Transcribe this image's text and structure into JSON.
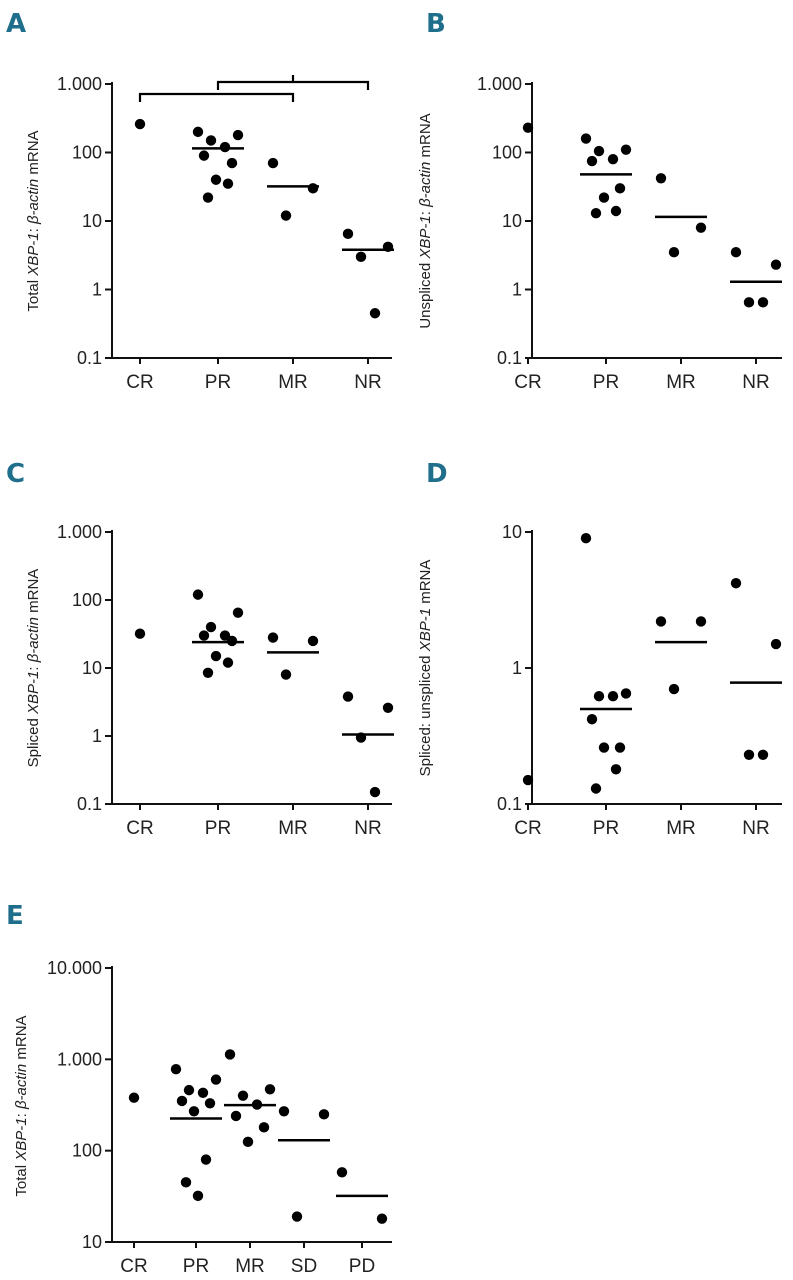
{
  "chart_data": [
    {
      "panel": "A",
      "type": "scatter",
      "yscale": "log",
      "ylim": [
        0.1,
        1000
      ],
      "yticks": [
        0.1,
        1,
        10,
        100,
        1000
      ],
      "ytick_labels": [
        "0.1",
        "1",
        "10",
        "100",
        "1.000"
      ],
      "ylabel": {
        "pre": "Total ",
        "it1": "XBP-1",
        "mid": ": ",
        "it2": "β-actin",
        "post": " mRNA"
      },
      "categories": [
        "CR",
        "PR",
        "MR",
        "NR"
      ],
      "points": [
        [
          260
        ],
        [
          200,
          180,
          150,
          120,
          90,
          70,
          40,
          35,
          22
        ],
        [
          70,
          30,
          12
        ],
        [
          6.5,
          4.2,
          3.0,
          0.45
        ]
      ],
      "medians": [
        null,
        115,
        32,
        3.8
      ],
      "brackets": [
        [
          0,
          2
        ],
        [
          1,
          3
        ]
      ]
    },
    {
      "panel": "B",
      "type": "scatter",
      "yscale": "log",
      "ylim": [
        0.1,
        1000
      ],
      "yticks": [
        0.1,
        1,
        10,
        100,
        1000
      ],
      "ytick_labels": [
        "0.1",
        "1",
        "10",
        "100",
        "1.000"
      ],
      "ylabel": {
        "pre": "Unspliced ",
        "it1": "XBP-1",
        "mid": ": ",
        "it2": "β-actin",
        "post": " mRNA"
      },
      "categories": [
        "CR",
        "PR",
        "MR",
        "NR"
      ],
      "points": [
        [
          230
        ],
        [
          160,
          110,
          105,
          80,
          75,
          30,
          22,
          14,
          13
        ],
        [
          42,
          8,
          3.5
        ],
        [
          3.5,
          2.3,
          0.65,
          0.65
        ]
      ],
      "medians": [
        null,
        48,
        11.5,
        1.3
      ],
      "brackets": []
    },
    {
      "panel": "C",
      "type": "scatter",
      "yscale": "log",
      "ylim": [
        0.1,
        1000
      ],
      "yticks": [
        0.1,
        1,
        10,
        100,
        1000
      ],
      "ytick_labels": [
        "0.1",
        "1",
        "10",
        "100",
        "1.000"
      ],
      "ylabel": {
        "pre": "Spliced ",
        "it1": "XBP-1",
        "mid": ": ",
        "it2": "β-actin",
        "post": " mRNA"
      },
      "categories": [
        "CR",
        "PR",
        "MR",
        "NR"
      ],
      "points": [
        [
          32
        ],
        [
          120,
          65,
          40,
          30,
          30,
          25,
          15,
          12,
          8.5
        ],
        [
          28,
          25,
          8
        ],
        [
          3.8,
          2.6,
          0.95,
          0.15
        ]
      ],
      "medians": [
        null,
        24,
        17,
        1.05
      ],
      "brackets": []
    },
    {
      "panel": "D",
      "type": "scatter",
      "yscale": "log",
      "ylim": [
        0.1,
        10
      ],
      "yticks": [
        0.1,
        1,
        10
      ],
      "ytick_labels": [
        "0.1",
        "1",
        "10"
      ],
      "ylabel": {
        "pre": "Spliced: unspliced ",
        "it1": "XBP-1",
        "mid": "",
        "it2": "",
        "post": " mRNA"
      },
      "categories": [
        "CR",
        "PR",
        "MR",
        "NR"
      ],
      "points": [
        [
          0.15
        ],
        [
          9,
          0.65,
          0.62,
          0.62,
          0.42,
          0.26,
          0.26,
          0.18,
          0.13
        ],
        [
          2.2,
          2.2,
          0.7
        ],
        [
          4.2,
          1.5,
          0.23,
          0.23
        ]
      ],
      "medians": [
        null,
        0.5,
        1.55,
        0.78
      ],
      "brackets": []
    },
    {
      "panel": "E",
      "type": "scatter",
      "yscale": "log",
      "ylim": [
        10,
        10000
      ],
      "yticks": [
        10,
        100,
        1000,
        10000
      ],
      "ytick_labels": [
        "10",
        "100",
        "1.000",
        "10.000"
      ],
      "ylabel": {
        "pre": "Total ",
        "it1": "XBP-1",
        "mid": ": ",
        "it2": "β-actin",
        "post": " mRNA"
      },
      "categories": [
        "CR",
        "PR",
        "MR",
        "SD",
        "PD"
      ],
      "points": [
        [
          380
        ],
        [
          780,
          600,
          460,
          430,
          350,
          330,
          270,
          80,
          45,
          32
        ],
        [
          1130,
          470,
          400,
          320,
          240,
          180,
          125
        ],
        [
          270,
          250,
          19
        ],
        [
          58,
          18
        ]
      ],
      "medians": [
        null,
        225,
        315,
        130,
        32
      ],
      "brackets": []
    }
  ]
}
